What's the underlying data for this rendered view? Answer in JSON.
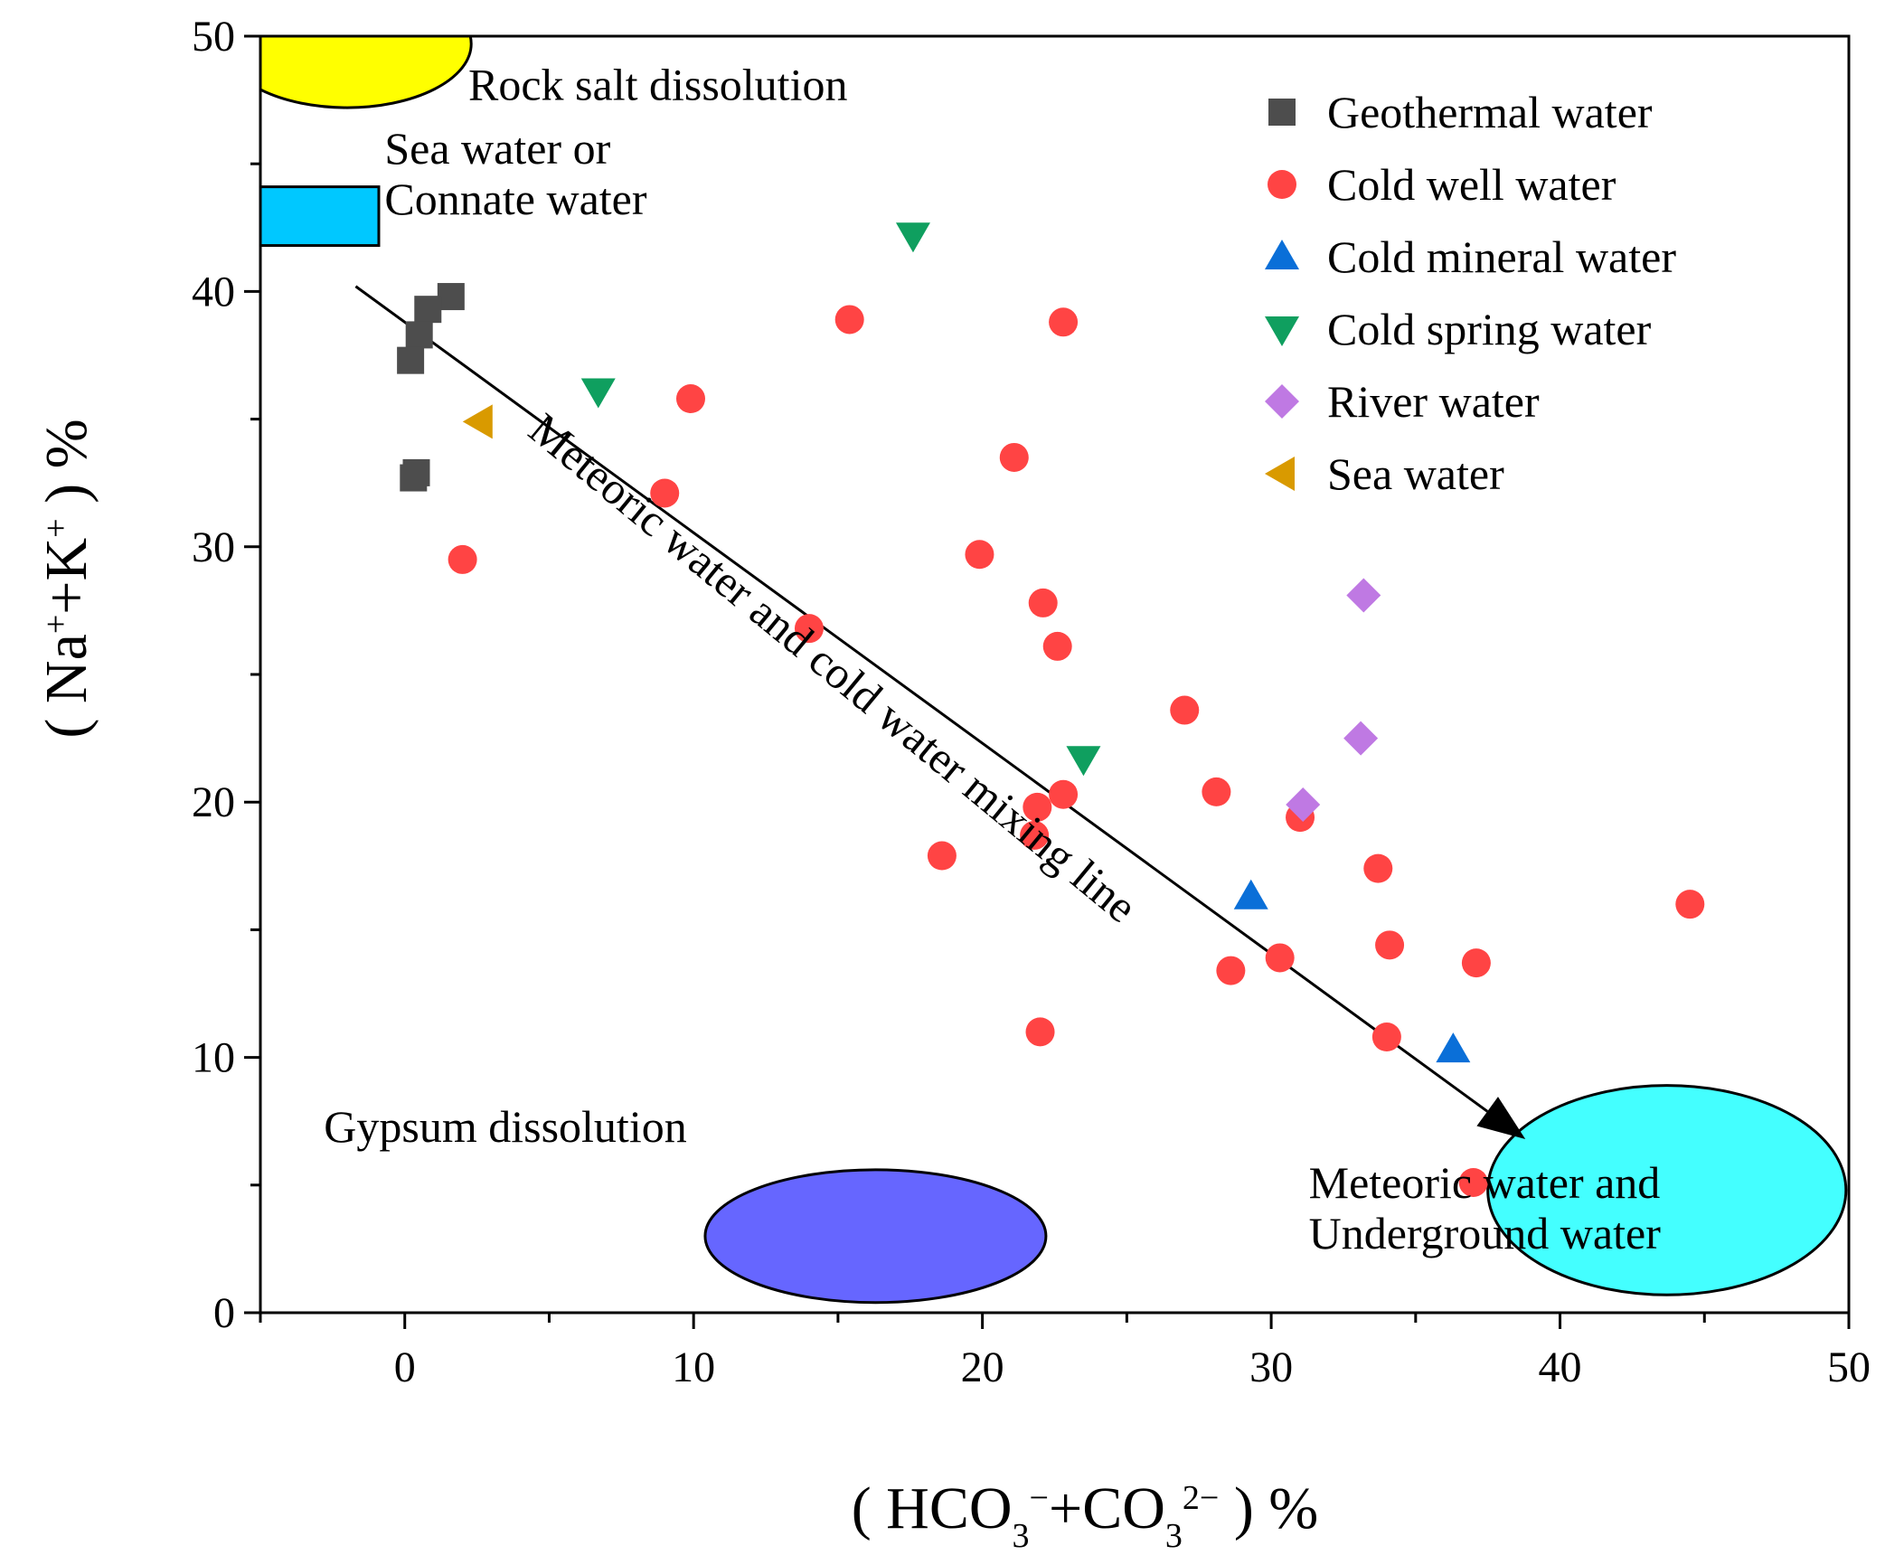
{
  "chart_data": {
    "type": "scatter",
    "title": "",
    "xlabel": "( HCO3⁻+CO3²⁻ ) %",
    "xlabel_parts": {
      "open": "( HCO",
      "sub1": "3",
      "sup1": "−",
      "mid": "+CO",
      "sub2": "3",
      "sup2": "2−",
      "close": " ) %"
    },
    "ylabel": "( Na⁺+K⁺ ) %",
    "ylabel_parts": {
      "open": "( Na",
      "sup1": "+",
      "mid": "+K",
      "sup2": "+",
      "close": " ) %"
    },
    "xlim": [
      -5,
      50
    ],
    "ylim": [
      0,
      50
    ],
    "x_major_ticks": [
      0,
      10,
      20,
      30,
      40,
      50
    ],
    "x_tick_labels": [
      "0",
      "10",
      "20",
      "30",
      "40",
      "50"
    ],
    "x_minor_ticks": [
      -5,
      5,
      15,
      25,
      35,
      45
    ],
    "y_major_ticks": [
      0,
      10,
      20,
      30,
      40,
      50
    ],
    "y_tick_labels": [
      "0",
      "10",
      "20",
      "30",
      "40",
      "50"
    ],
    "y_minor_ticks": [
      5,
      15,
      25,
      35,
      45
    ],
    "grid": false,
    "legend_position": "top-right",
    "series": [
      {
        "name": "Geothermal water",
        "marker": "square",
        "color": "#4d4d4d",
        "points": [
          [
            1.6,
            39.8
          ],
          [
            0.8,
            39.3
          ],
          [
            0.5,
            38.3
          ],
          [
            0.2,
            37.3
          ],
          [
            0.4,
            32.9
          ],
          [
            0.3,
            32.7
          ]
        ]
      },
      {
        "name": "Cold well water",
        "marker": "circle",
        "color": "#ff4444",
        "points": [
          [
            15.4,
            38.9
          ],
          [
            22.8,
            38.8
          ],
          [
            9.9,
            35.8
          ],
          [
            21.1,
            33.5
          ],
          [
            9.0,
            32.1
          ],
          [
            2.0,
            29.5
          ],
          [
            19.9,
            29.7
          ],
          [
            22.1,
            27.8
          ],
          [
            14.0,
            26.8
          ],
          [
            22.6,
            26.1
          ],
          [
            27.0,
            23.6
          ],
          [
            28.1,
            20.4
          ],
          [
            22.8,
            20.3
          ],
          [
            21.9,
            19.8
          ],
          [
            21.8,
            18.7
          ],
          [
            31.0,
            19.4
          ],
          [
            18.6,
            17.9
          ],
          [
            33.7,
            17.4
          ],
          [
            44.5,
            16.0
          ],
          [
            34.1,
            14.4
          ],
          [
            37.1,
            13.7
          ],
          [
            30.3,
            13.9
          ],
          [
            28.6,
            13.4
          ],
          [
            22.0,
            11.0
          ],
          [
            34.0,
            10.8
          ],
          [
            37.0,
            5.1
          ]
        ]
      },
      {
        "name": "Cold mineral water",
        "marker": "triangle-up",
        "color": "#0a6fd8",
        "points": [
          [
            29.3,
            16.3
          ],
          [
            36.3,
            10.3
          ]
        ]
      },
      {
        "name": "Cold spring water",
        "marker": "triangle-down",
        "color": "#0f9f5f",
        "points": [
          [
            17.6,
            42.2
          ],
          [
            6.7,
            36.1
          ],
          [
            23.5,
            21.7
          ]
        ]
      },
      {
        "name": "River water",
        "marker": "diamond",
        "color": "#bf79e3",
        "points": [
          [
            33.2,
            28.1
          ],
          [
            33.1,
            22.5
          ],
          [
            31.1,
            19.9
          ]
        ]
      },
      {
        "name": "Sea water",
        "marker": "triangle-left",
        "color": "#d99a00",
        "points": [
          [
            2.6,
            34.9
          ]
        ]
      }
    ],
    "regions": [
      {
        "name": "rock-salt-region",
        "shape": "ellipse",
        "cx": -2.0,
        "cy": 49.7,
        "rx": 4.3,
        "ry": 2.5,
        "color": "#ffff00"
      },
      {
        "name": "sea-water-region",
        "shape": "rect",
        "x0": -5.0,
        "y0": 41.8,
        "x1": -0.9,
        "y1": 44.1,
        "color": "#00c8ff"
      },
      {
        "name": "gypsum-region",
        "shape": "ellipse",
        "cx": 16.3,
        "cy": 3.0,
        "rx": 5.9,
        "ry": 2.6,
        "color": "#6666ff"
      },
      {
        "name": "meteoric-region",
        "shape": "ellipse",
        "cx": 43.7,
        "cy": 4.8,
        "rx": 6.2,
        "ry": 4.1,
        "color": "#44ffff"
      }
    ],
    "mixing_arrow": {
      "from": [
        -1.7,
        40.2
      ],
      "to": [
        38.8,
        6.8
      ]
    },
    "annotations": [
      {
        "name": "rock-salt-label",
        "lines": [
          "Rock salt dissolution"
        ],
        "x": 2.2,
        "y": 47.5,
        "anchor": "start",
        "size": 50
      },
      {
        "name": "sea-water-label",
        "lines": [
          "Sea water or",
          "Connate water"
        ],
        "x": -0.7,
        "y": 45.0,
        "anchor": "start",
        "size": 50
      },
      {
        "name": "gypsum-label",
        "lines": [
          "Gypsum dissolution"
        ],
        "x": -2.8,
        "y": 6.7,
        "anchor": "start",
        "size": 50
      },
      {
        "name": "meteoric-label",
        "lines": [
          "Meteoric water and",
          "Underground water"
        ],
        "x": 31.3,
        "y": 4.5,
        "anchor": "start",
        "size": 50
      },
      {
        "name": "mixing-line-label",
        "lines": [
          "Meteoric water and cold water mixing line"
        ],
        "x": 4.2,
        "y": 34.4,
        "anchor": "start",
        "size": 50,
        "rotate": 39.5
      }
    ]
  }
}
